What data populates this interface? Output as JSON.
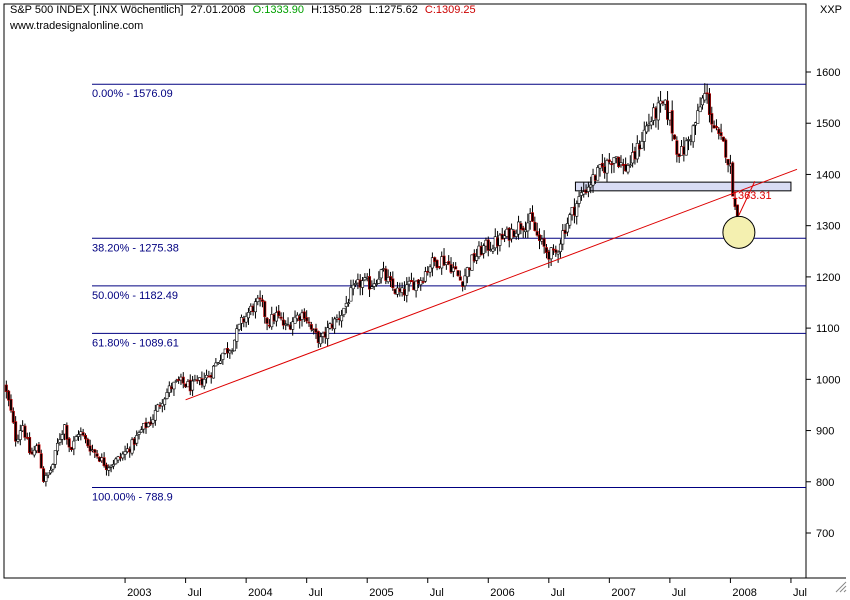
{
  "header": {
    "symbol": "S&P 500 INDEX [.INX Wöchentlich]",
    "date": "27.01.2008",
    "open": "O:1333.90",
    "high": "H:1350.28",
    "low": "L:1275.62",
    "close": "C:1309.25",
    "source": "www.tradesignalonline.com",
    "axis_tag": "XXP"
  },
  "colors": {
    "up": "#00a000",
    "down": "#cc0000",
    "fib_line": "#000080",
    "fib_text": "#000080",
    "trendline": "#dd0000",
    "zone_fill": "#d8dcf4",
    "highlight_fill": "#f4f0b0",
    "candle_up_body": "#ffffff",
    "candle_down_body": "#000000"
  },
  "chart_data": {
    "type": "candlestick",
    "title": "S&P 500 INDEX [.INX Wöchentlich]",
    "ylim": [
      620,
      1670
    ],
    "y_ticks": [
      700,
      800,
      900,
      1000,
      1100,
      1200,
      1300,
      1400,
      1500,
      1600
    ],
    "x_range": [
      2002.0,
      2008.55
    ],
    "x_ticks": [
      {
        "label": "2003",
        "t": 2003.0
      },
      {
        "label": "Jul",
        "t": 2003.5
      },
      {
        "label": "2004",
        "t": 2004.0
      },
      {
        "label": "Jul",
        "t": 2004.5
      },
      {
        "label": "2005",
        "t": 2005.0
      },
      {
        "label": "Jul",
        "t": 2005.5
      },
      {
        "label": "2006",
        "t": 2006.0
      },
      {
        "label": "Jul",
        "t": 2006.5
      },
      {
        "label": "2007",
        "t": 2007.0
      },
      {
        "label": "Jul",
        "t": 2007.5
      },
      {
        "label": "2008",
        "t": 2008.0
      },
      {
        "label": "Jul",
        "t": 2008.5
      }
    ],
    "price_path": [
      [
        2002.0,
        990
      ],
      [
        2002.05,
        945
      ],
      [
        2002.1,
        880
      ],
      [
        2002.15,
        915
      ],
      [
        2002.22,
        850
      ],
      [
        2002.28,
        870
      ],
      [
        2002.33,
        800
      ],
      [
        2002.4,
        830
      ],
      [
        2002.45,
        880
      ],
      [
        2002.5,
        910
      ],
      [
        2002.55,
        860
      ],
      [
        2002.62,
        900
      ],
      [
        2002.7,
        870
      ],
      [
        2002.78,
        850
      ],
      [
        2002.85,
        830
      ],
      [
        2002.95,
        845
      ],
      [
        2003.05,
        870
      ],
      [
        2003.15,
        905
      ],
      [
        2003.22,
        920
      ],
      [
        2003.3,
        960
      ],
      [
        2003.38,
        985
      ],
      [
        2003.45,
        995
      ],
      [
        2003.55,
        985
      ],
      [
        2003.62,
        995
      ],
      [
        2003.7,
        1010
      ],
      [
        2003.8,
        1050
      ],
      [
        2003.88,
        1065
      ],
      [
        2003.96,
        1110
      ],
      [
        2004.05,
        1140
      ],
      [
        2004.12,
        1150
      ],
      [
        2004.18,
        1110
      ],
      [
        2004.25,
        1125
      ],
      [
        2004.33,
        1100
      ],
      [
        2004.4,
        1120
      ],
      [
        2004.48,
        1130
      ],
      [
        2004.55,
        1090
      ],
      [
        2004.62,
        1075
      ],
      [
        2004.7,
        1105
      ],
      [
        2004.78,
        1125
      ],
      [
        2004.86,
        1165
      ],
      [
        2004.95,
        1190
      ],
      [
        2005.03,
        1185
      ],
      [
        2005.12,
        1210
      ],
      [
        2005.2,
        1180
      ],
      [
        2005.28,
        1165
      ],
      [
        2005.36,
        1185
      ],
      [
        2005.44,
        1195
      ],
      [
        2005.52,
        1225
      ],
      [
        2005.62,
        1235
      ],
      [
        2005.7,
        1220
      ],
      [
        2005.78,
        1190
      ],
      [
        2005.86,
        1230
      ],
      [
        2005.95,
        1255
      ],
      [
        2006.05,
        1265
      ],
      [
        2006.15,
        1280
      ],
      [
        2006.25,
        1300
      ],
      [
        2006.35,
        1310
      ],
      [
        2006.42,
        1270
      ],
      [
        2006.48,
        1250
      ],
      [
        2006.55,
        1240
      ],
      [
        2006.62,
        1290
      ],
      [
        2006.7,
        1330
      ],
      [
        2006.78,
        1365
      ],
      [
        2006.88,
        1395
      ],
      [
        2006.96,
        1415
      ],
      [
        2007.05,
        1440
      ],
      [
        2007.12,
        1410
      ],
      [
        2007.2,
        1430
      ],
      [
        2007.3,
        1490
      ],
      [
        2007.38,
        1520
      ],
      [
        2007.45,
        1535
      ],
      [
        2007.5,
        1510
      ],
      [
        2007.55,
        1455
      ],
      [
        2007.6,
        1440
      ],
      [
        2007.66,
        1470
      ],
      [
        2007.72,
        1505
      ],
      [
        2007.76,
        1540
      ],
      [
        2007.8,
        1560
      ],
      [
        2007.85,
        1500
      ],
      [
        2007.9,
        1470
      ],
      [
        2007.96,
        1450
      ],
      [
        2008.0,
        1410
      ],
      [
        2008.04,
        1330
      ],
      [
        2008.07,
        1309.25
      ]
    ],
    "fibonacci_levels": [
      {
        "label": "0.00% - 1576.09",
        "value": 1576.09
      },
      {
        "label": "38.20% - 1275.38",
        "value": 1275.38
      },
      {
        "label": "50.00% - 1182.49",
        "value": 1182.49
      },
      {
        "label": "61.80% - 1089.61",
        "value": 1089.61
      },
      {
        "label": "100.00% - 788.9",
        "value": 788.9
      }
    ],
    "trendline": {
      "from": [
        2003.5,
        960
      ],
      "to": [
        2008.55,
        1410
      ]
    },
    "support_zone": {
      "t0": 2006.72,
      "t1": 2008.5,
      "low": 1368,
      "high": 1385
    },
    "highlight_circle": {
      "t": 2008.07,
      "value": 1287
    },
    "annotation": {
      "text": "1363.31",
      "t": 2008.02,
      "value": 1363.31
    }
  }
}
